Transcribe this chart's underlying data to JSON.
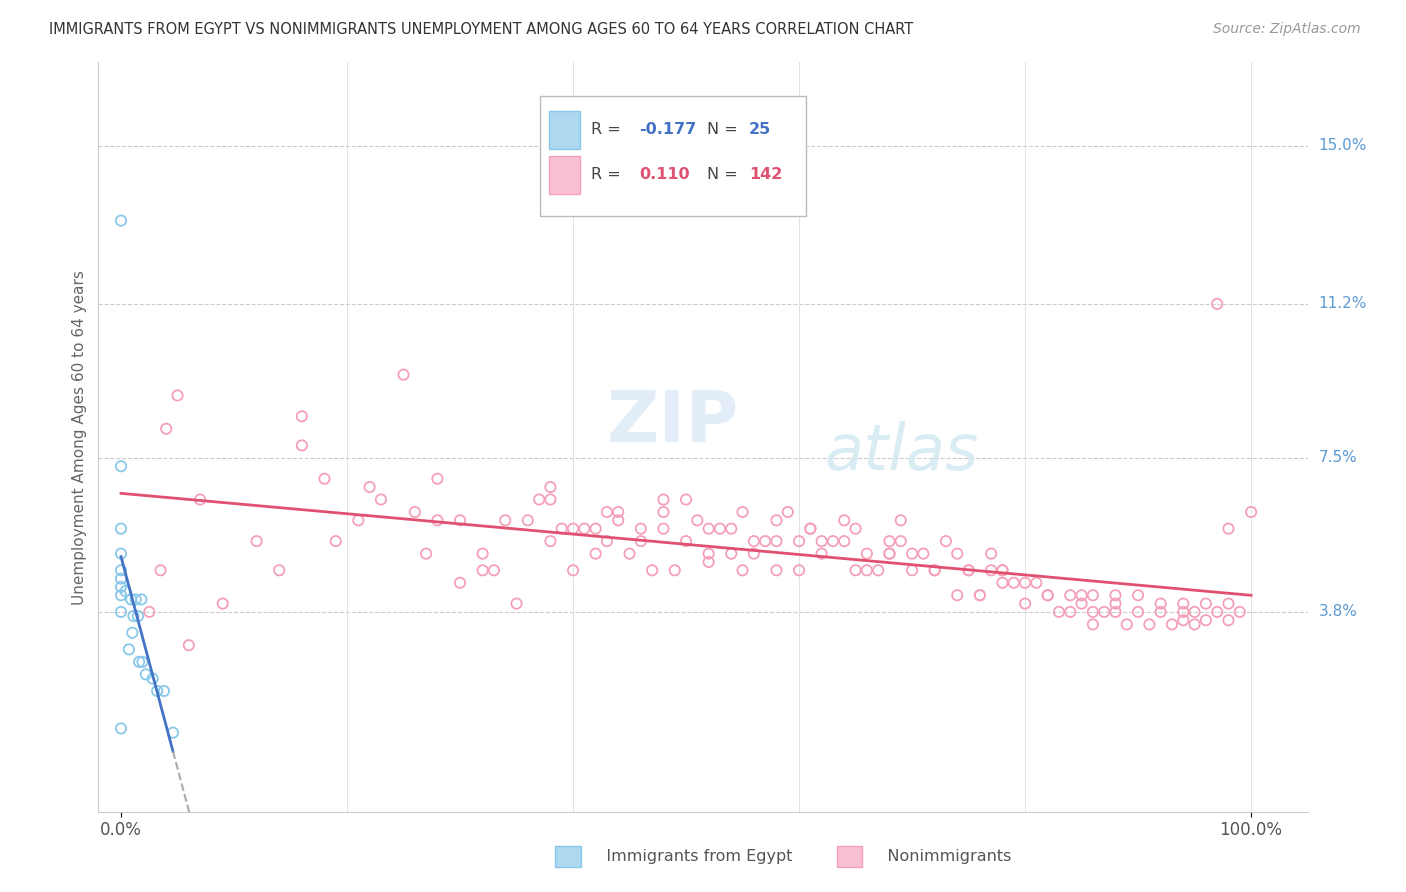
{
  "title": "IMMIGRANTS FROM EGYPT VS NONIMMIGRANTS UNEMPLOYMENT AMONG AGES 60 TO 64 YEARS CORRELATION CHART",
  "source": "Source: ZipAtlas.com",
  "ylabel": "Unemployment Among Ages 60 to 64 years",
  "xlim": [
    -0.02,
    1.05
  ],
  "ylim": [
    -0.01,
    0.17
  ],
  "xtick_positions": [
    0.0,
    1.0
  ],
  "xtick_labels": [
    "0.0%",
    "100.0%"
  ],
  "ytick_values": [
    0.038,
    0.075,
    0.112,
    0.15
  ],
  "ytick_labels": [
    "3.8%",
    "7.5%",
    "11.2%",
    "15.0%"
  ],
  "color_immigrants": "#88C8EA",
  "color_nonimmigrants": "#F4A0B8",
  "color_immigrants_line": "#4472C4",
  "color_nonimmigrants_line": "#E05070",
  "color_immigrants_fill": "#ADD8F0",
  "color_nonimmigrants_fill": "#F8C0D0",
  "watermark_zip": "ZIP",
  "watermark_atlas": "atlas",
  "legend_r1": "-0.177",
  "legend_n1": "25",
  "legend_r2": "0.110",
  "legend_n2": "142",
  "imm_x": [
    0.0,
    0.0,
    0.0,
    0.0,
    0.0,
    0.0,
    0.0,
    0.0,
    0.0,
    0.0,
    0.004,
    0.007,
    0.009,
    0.01,
    0.011,
    0.013,
    0.015,
    0.016,
    0.018,
    0.019,
    0.022,
    0.028,
    0.032,
    0.038,
    0.046
  ],
  "imm_y": [
    0.132,
    0.073,
    0.058,
    0.052,
    0.048,
    0.046,
    0.044,
    0.042,
    0.038,
    0.01,
    0.043,
    0.029,
    0.041,
    0.033,
    0.037,
    0.041,
    0.037,
    0.026,
    0.041,
    0.026,
    0.023,
    0.022,
    0.019,
    0.019,
    0.009
  ],
  "non_x": [
    0.025,
    0.035,
    0.05,
    0.07,
    0.09,
    0.12,
    0.14,
    0.16,
    0.19,
    0.21,
    0.23,
    0.25,
    0.27,
    0.28,
    0.3,
    0.32,
    0.33,
    0.35,
    0.37,
    0.38,
    0.39,
    0.4,
    0.41,
    0.42,
    0.43,
    0.44,
    0.45,
    0.46,
    0.47,
    0.48,
    0.49,
    0.5,
    0.51,
    0.52,
    0.53,
    0.54,
    0.55,
    0.56,
    0.57,
    0.58,
    0.59,
    0.6,
    0.61,
    0.62,
    0.63,
    0.64,
    0.65,
    0.66,
    0.67,
    0.68,
    0.69,
    0.7,
    0.71,
    0.72,
    0.73,
    0.74,
    0.75,
    0.76,
    0.77,
    0.78,
    0.79,
    0.8,
    0.81,
    0.82,
    0.83,
    0.84,
    0.85,
    0.86,
    0.87,
    0.88,
    0.89,
    0.9,
    0.91,
    0.92,
    0.93,
    0.94,
    0.95,
    0.96,
    0.97,
    0.98,
    0.99,
    1.0,
    0.22,
    0.3,
    0.4,
    0.5,
    0.55,
    0.6,
    0.65,
    0.7,
    0.75,
    0.8,
    0.85,
    0.9,
    0.95,
    0.18,
    0.26,
    0.34,
    0.43,
    0.52,
    0.61,
    0.69,
    0.77,
    0.86,
    0.94,
    0.38,
    0.48,
    0.58,
    0.68,
    0.78,
    0.88,
    0.98,
    0.32,
    0.42,
    0.52,
    0.62,
    0.72,
    0.82,
    0.92,
    0.44,
    0.54,
    0.64,
    0.74,
    0.84,
    0.94,
    0.36,
    0.46,
    0.56,
    0.66,
    0.76,
    0.86,
    0.96,
    0.28,
    0.38,
    0.48,
    0.58,
    0.68,
    0.78,
    0.88,
    0.98,
    0.97,
    0.04,
    0.16,
    0.06
  ],
  "non_y": [
    0.038,
    0.048,
    0.09,
    0.065,
    0.04,
    0.055,
    0.048,
    0.085,
    0.055,
    0.06,
    0.065,
    0.095,
    0.052,
    0.06,
    0.045,
    0.048,
    0.048,
    0.04,
    0.065,
    0.055,
    0.058,
    0.048,
    0.058,
    0.052,
    0.055,
    0.06,
    0.052,
    0.058,
    0.048,
    0.062,
    0.048,
    0.055,
    0.06,
    0.05,
    0.058,
    0.052,
    0.048,
    0.055,
    0.055,
    0.048,
    0.062,
    0.048,
    0.058,
    0.052,
    0.055,
    0.06,
    0.048,
    0.052,
    0.048,
    0.055,
    0.06,
    0.048,
    0.052,
    0.048,
    0.055,
    0.042,
    0.048,
    0.042,
    0.052,
    0.048,
    0.045,
    0.04,
    0.045,
    0.042,
    0.038,
    0.042,
    0.04,
    0.035,
    0.038,
    0.038,
    0.035,
    0.038,
    0.035,
    0.04,
    0.035,
    0.04,
    0.035,
    0.04,
    0.038,
    0.058,
    0.038,
    0.062,
    0.068,
    0.06,
    0.058,
    0.065,
    0.062,
    0.055,
    0.058,
    0.052,
    0.048,
    0.045,
    0.042,
    0.042,
    0.038,
    0.07,
    0.062,
    0.06,
    0.062,
    0.058,
    0.058,
    0.055,
    0.048,
    0.042,
    0.038,
    0.065,
    0.058,
    0.055,
    0.052,
    0.048,
    0.042,
    0.04,
    0.052,
    0.058,
    0.052,
    0.055,
    0.048,
    0.042,
    0.038,
    0.062,
    0.058,
    0.055,
    0.052,
    0.038,
    0.036,
    0.06,
    0.055,
    0.052,
    0.048,
    0.042,
    0.038,
    0.036,
    0.07,
    0.068,
    0.065,
    0.06,
    0.052,
    0.045,
    0.04,
    0.036,
    0.112,
    0.082,
    0.078,
    0.03
  ]
}
